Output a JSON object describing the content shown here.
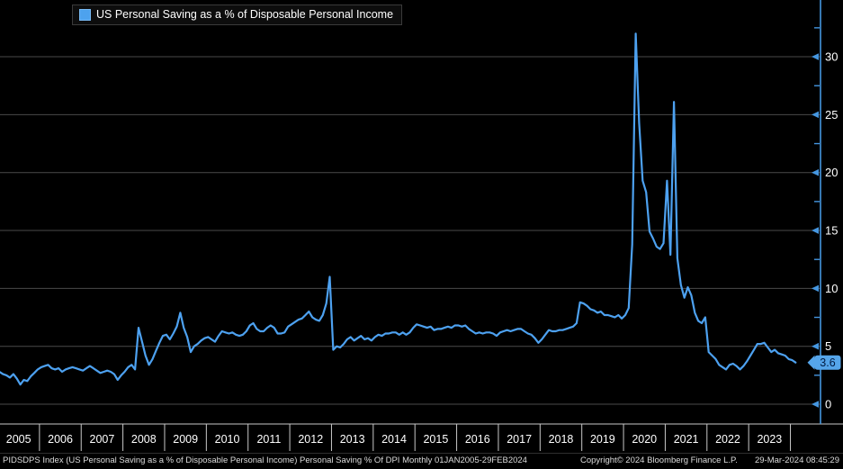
{
  "legend": {
    "label": "US Personal Saving as a % of Disposable Personal Income",
    "swatch_color": "#4da2ee"
  },
  "footer": {
    "description": "PIDSDPS Index (US Personal Saving as a % of Disposable Personal Income) Personal Saving % Of DPI  Monthly 01JAN2005-29FEB2024",
    "copyright": "Copyright© 2024 Bloomberg Finance L.P.",
    "timestamp": "29-Mar-2024 08:45:29"
  },
  "chart_data": {
    "type": "line",
    "title": "US Personal Saving as a % of Disposable Personal Income",
    "xlabel": "",
    "ylabel": "",
    "frequency": "monthly",
    "x_start": "2005-01",
    "x_end": "2024-02",
    "x_tick_labels": [
      "2005",
      "2006",
      "2007",
      "2008",
      "2009",
      "2010",
      "2011",
      "2012",
      "2013",
      "2014",
      "2015",
      "2016",
      "2017",
      "2018",
      "2019",
      "2020",
      "2021",
      "2022",
      "2023"
    ],
    "y_ticks": [
      0,
      5,
      10,
      15,
      20,
      25,
      30
    ],
    "y_minor_ticks": [
      2.5,
      7.5,
      12.5,
      17.5,
      22.5,
      27.5,
      32.5
    ],
    "ylim": [
      -1.63,
      34.9
    ],
    "grid": "horizontal",
    "legend_position": "top-left",
    "last_value_label": "3.6",
    "colors": {
      "line": "#4da1f0",
      "axis": "#4596e0",
      "grid": "#4a4a4a",
      "x_axis_line": "#c8c8c8",
      "tick_label": "#ffffff",
      "badge_bg": "#55a5ea",
      "badge_text": "#001a40",
      "background": "#000000"
    },
    "series": [
      {
        "name": "US Personal Saving as a % of Disposable Personal Income",
        "values": [
          2.8,
          2.6,
          2.5,
          2.3,
          2.6,
          2.2,
          1.7,
          2.1,
          2.0,
          2.4,
          2.7,
          3.0,
          3.2,
          3.3,
          3.4,
          3.1,
          3.0,
          3.1,
          2.8,
          3.0,
          3.1,
          3.2,
          3.1,
          3.0,
          2.9,
          3.1,
          3.3,
          3.1,
          2.9,
          2.7,
          2.8,
          2.9,
          2.8,
          2.6,
          2.1,
          2.5,
          2.8,
          3.2,
          3.4,
          3.0,
          6.6,
          5.4,
          4.2,
          3.4,
          3.9,
          4.6,
          5.3,
          5.9,
          6.0,
          5.6,
          6.1,
          6.7,
          7.9,
          6.6,
          5.8,
          4.5,
          5.0,
          5.2,
          5.5,
          5.7,
          5.8,
          5.6,
          5.4,
          5.9,
          6.3,
          6.2,
          6.1,
          6.2,
          6.0,
          5.9,
          6.0,
          6.3,
          6.8,
          7.0,
          6.5,
          6.3,
          6.3,
          6.6,
          6.8,
          6.6,
          6.1,
          6.1,
          6.2,
          6.7,
          6.9,
          7.1,
          7.3,
          7.4,
          7.7,
          8.0,
          7.5,
          7.3,
          7.2,
          7.7,
          8.7,
          11.0,
          4.7,
          5.0,
          4.9,
          5.2,
          5.6,
          5.8,
          5.5,
          5.7,
          5.9,
          5.6,
          5.7,
          5.5,
          5.8,
          6.0,
          5.9,
          6.1,
          6.1,
          6.2,
          6.2,
          6.0,
          6.2,
          6.0,
          6.2,
          6.6,
          6.9,
          6.8,
          6.7,
          6.6,
          6.7,
          6.4,
          6.5,
          6.5,
          6.6,
          6.7,
          6.6,
          6.8,
          6.8,
          6.7,
          6.8,
          6.5,
          6.3,
          6.1,
          6.2,
          6.1,
          6.2,
          6.2,
          6.1,
          5.9,
          6.2,
          6.3,
          6.4,
          6.3,
          6.4,
          6.5,
          6.5,
          6.3,
          6.1,
          6.0,
          5.7,
          5.3,
          5.6,
          6.0,
          6.4,
          6.3,
          6.3,
          6.4,
          6.4,
          6.5,
          6.6,
          6.7,
          7.0,
          8.8,
          8.7,
          8.5,
          8.2,
          8.1,
          7.9,
          8.0,
          7.7,
          7.7,
          7.6,
          7.5,
          7.7,
          7.4,
          7.7,
          8.3,
          13.8,
          32.0,
          24.3,
          19.3,
          18.3,
          14.9,
          14.3,
          13.6,
          13.4,
          13.9,
          19.3,
          12.9,
          26.1,
          12.6,
          10.3,
          9.2,
          10.1,
          9.4,
          7.9,
          7.2,
          7.0,
          7.5,
          4.5,
          4.2,
          3.9,
          3.4,
          3.2,
          3.0,
          3.4,
          3.5,
          3.3,
          3.0,
          3.3,
          3.7,
          4.2,
          4.7,
          5.2,
          5.2,
          5.3,
          4.9,
          4.5,
          4.7,
          4.4,
          4.3,
          4.2,
          3.9,
          3.8,
          3.6
        ]
      }
    ]
  }
}
